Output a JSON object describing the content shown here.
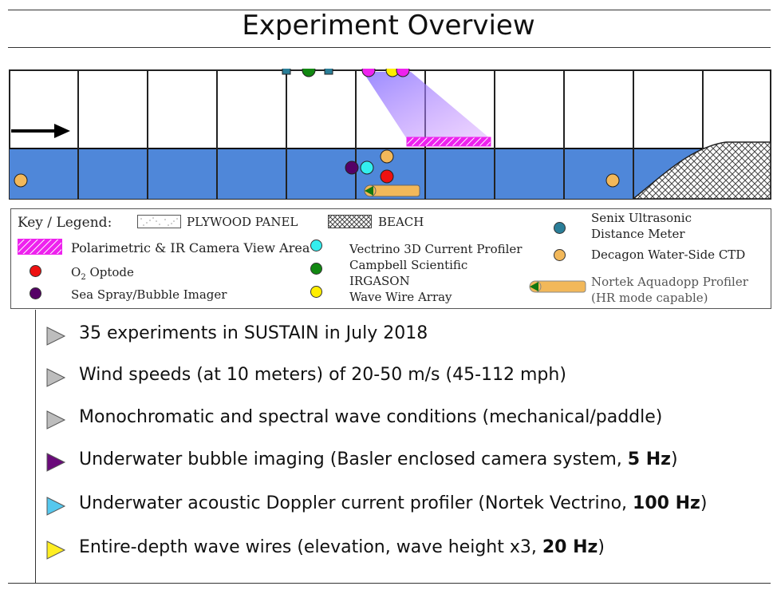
{
  "title": "Experiment Overview",
  "legend": {
    "header": "Key / Legend:",
    "plywood": "PLYWOOD PANEL",
    "beach": "BEACH",
    "camera_area": "Polarimetric & IR Camera View Area",
    "optode_o": "O",
    "optode_sub": "2",
    "optode_rest": " Optode",
    "bubble_imager": "Sea Spray/Bubble Imager",
    "vectrino": "Vectrino 3D Current Profiler",
    "irgason_1": "Campbell Scientific",
    "irgason_2": "IRGASON",
    "wave_wire": "Wave Wire Array",
    "senix_1": "Senix Ultrasonic",
    "senix_2": "Distance Meter",
    "ctd": "Decagon Water-Side CTD",
    "aquadopp_1": "Nortek Aquadopp Profiler",
    "aquadopp_2": "(HR mode capable)"
  },
  "colors": {
    "water": "#4f87d9",
    "camera_magenta": "#ee22ee",
    "optode_red": "#ee1111",
    "bubble_purple": "#550066",
    "vectrino_cyan": "#33eeee",
    "irgason_green": "#118811",
    "wave_wire_yellow": "#ffee00",
    "senix_teal": "#2a7e98",
    "ctd_orange": "#f2b85a"
  },
  "bullets": [
    {
      "icon": "gray-triangle-icon",
      "color": "#bdbdbd",
      "text": "35 experiments in SUSTAIN in July 2018",
      "bold": ""
    },
    {
      "icon": "gray-triangle-icon",
      "color": "#bdbdbd",
      "text": "Wind speeds (at 10 meters) of 20-50 m/s (45-112 mph)",
      "bold": ""
    },
    {
      "icon": "gray-triangle-icon",
      "color": "#bdbdbd",
      "text": "Monochromatic and spectral wave conditions (mechanical/paddle)",
      "bold": ""
    },
    {
      "icon": "purple-triangle-icon",
      "color": "#6a0a7a",
      "text": "Underwater bubble imaging (Basler enclosed camera system, ",
      "bold": "5 Hz",
      "close": ")"
    },
    {
      "icon": "cyan-triangle-icon",
      "color": "#55c8ee",
      "text": "Underwater acoustic Doppler current profiler (Nortek Vectrino, ",
      "bold": "100 Hz",
      "close": ")"
    },
    {
      "icon": "yellow-triangle-icon",
      "color": "#ffee22",
      "text": "Entire-depth wave wires (elevation, wave height x3, ",
      "bold": "20 Hz",
      "close": ")"
    }
  ]
}
